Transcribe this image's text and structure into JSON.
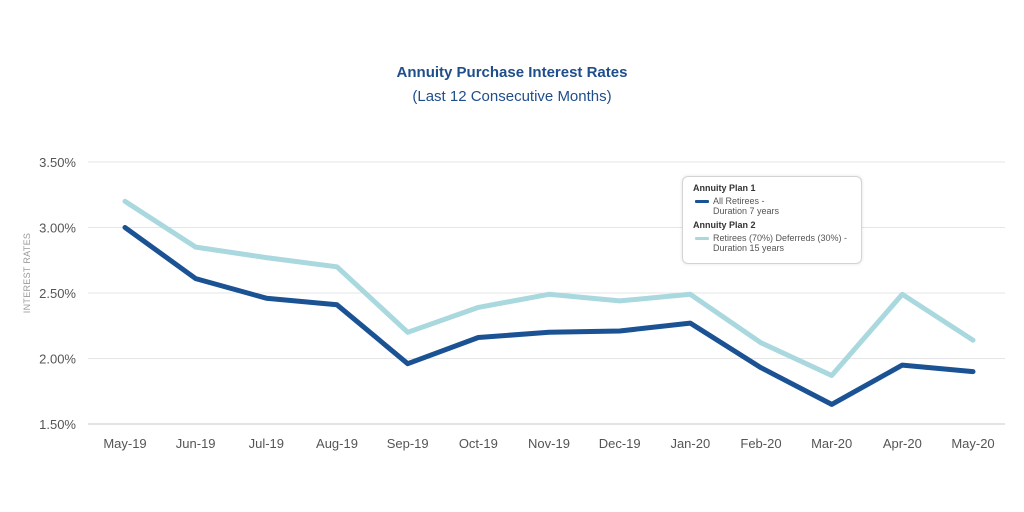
{
  "chart_data": {
    "type": "line",
    "title": "Annuity Purchase Interest Rates",
    "subtitle": "(Last 12 Consecutive Months)",
    "ylabel": "INTEREST RATES",
    "xlabel": "",
    "ylim": [
      1.5,
      3.5
    ],
    "yticks": [
      1.5,
      2.0,
      2.5,
      3.0,
      3.5
    ],
    "ytick_labels": [
      "1.50%",
      "2.00%",
      "2.50%",
      "3.00%",
      "3.50%"
    ],
    "grid": true,
    "legend_position": "top-right",
    "categories": [
      "May-19",
      "Jun-19",
      "Jul-19",
      "Aug-19",
      "Sep-19",
      "Oct-19",
      "Nov-19",
      "Dec-19",
      "Jan-20",
      "Feb-20",
      "Mar-20",
      "Apr-20",
      "May-20"
    ],
    "series": [
      {
        "group": "Annuity Plan 1",
        "name_line1": "All Retirees -",
        "name_line2": "Duration 7 years",
        "color": "#1a5294",
        "values": [
          3.0,
          2.61,
          2.46,
          2.41,
          1.96,
          2.16,
          2.2,
          2.21,
          2.27,
          1.93,
          1.65,
          1.95,
          1.9
        ]
      },
      {
        "group": "Annuity Plan 2",
        "name_line1": "Retirees (70%) Deferreds (30%) -",
        "name_line2": "Duration 15 years",
        "color": "#a9d8df",
        "values": [
          3.2,
          2.85,
          2.77,
          2.7,
          2.2,
          2.39,
          2.49,
          2.44,
          2.49,
          2.12,
          1.87,
          2.49,
          2.14
        ]
      }
    ]
  }
}
